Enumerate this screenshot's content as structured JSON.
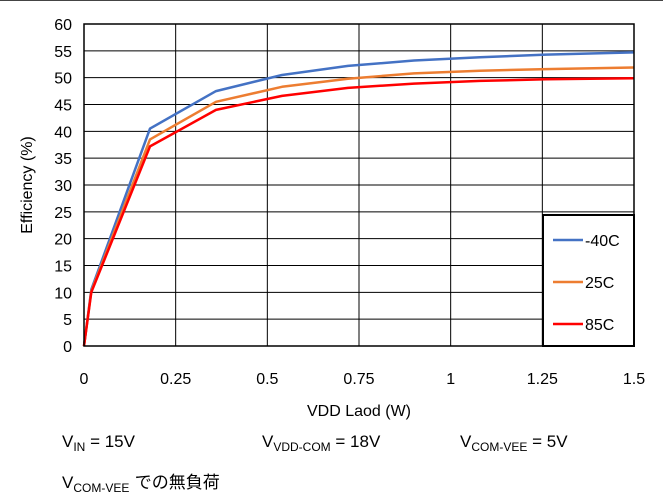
{
  "chart_data": {
    "type": "line",
    "title": "",
    "xlabel": "VDD Laod (W)",
    "ylabel": "Efficiency (%)",
    "xlim": [
      0,
      1.5
    ],
    "ylim": [
      0,
      60
    ],
    "xticks": [
      0,
      0.25,
      0.5,
      0.75,
      1,
      1.25,
      1.5
    ],
    "xtick_labels": [
      "0",
      "0.25",
      "0.5",
      "0.75",
      "1",
      "1.25",
      "1.5"
    ],
    "yticks": [
      0,
      5,
      10,
      15,
      20,
      25,
      30,
      35,
      40,
      45,
      50,
      55,
      60
    ],
    "ytick_labels": [
      "0",
      "5",
      "10",
      "15",
      "20",
      "25",
      "30",
      "35",
      "40",
      "45",
      "50",
      "55",
      "60"
    ],
    "grid": true,
    "legend_position": "bottom-right",
    "series": [
      {
        "name": "-40C",
        "color": "#4472C4",
        "points": [
          [
            0,
            0
          ],
          [
            0.02,
            10.5
          ],
          [
            0.18,
            40.5
          ],
          [
            0.36,
            47.5
          ],
          [
            0.54,
            50.5
          ],
          [
            0.72,
            52.2
          ],
          [
            0.9,
            53.2
          ],
          [
            1.08,
            53.8
          ],
          [
            1.26,
            54.3
          ],
          [
            1.5,
            54.7
          ]
        ]
      },
      {
        "name": "25C",
        "color": "#ED7D31",
        "points": [
          [
            0,
            0
          ],
          [
            0.02,
            10.2
          ],
          [
            0.18,
            38.5
          ],
          [
            0.36,
            45.5
          ],
          [
            0.54,
            48.3
          ],
          [
            0.72,
            49.8
          ],
          [
            0.9,
            50.8
          ],
          [
            1.08,
            51.3
          ],
          [
            1.26,
            51.6
          ],
          [
            1.5,
            51.9
          ]
        ]
      },
      {
        "name": "85C",
        "color": "#FF0000",
        "points": [
          [
            0,
            0
          ],
          [
            0.02,
            10.0
          ],
          [
            0.18,
            37.2
          ],
          [
            0.36,
            44.0
          ],
          [
            0.54,
            46.6
          ],
          [
            0.72,
            48.1
          ],
          [
            0.9,
            48.9
          ],
          [
            1.08,
            49.4
          ],
          [
            1.26,
            49.7
          ],
          [
            1.5,
            49.9
          ]
        ]
      }
    ]
  },
  "conditions": {
    "vin": {
      "base": "V",
      "sub": "IN",
      "rest": " = 15V"
    },
    "vdd_com": {
      "base": "V",
      "sub": "VDD-COM",
      "rest": " = 18V"
    },
    "com_vee": {
      "base": "V",
      "sub": "COM-VEE",
      "rest": " = 5V"
    }
  },
  "note": {
    "base": "V",
    "sub": "COM-VEE",
    "rest": " での無負荷"
  }
}
